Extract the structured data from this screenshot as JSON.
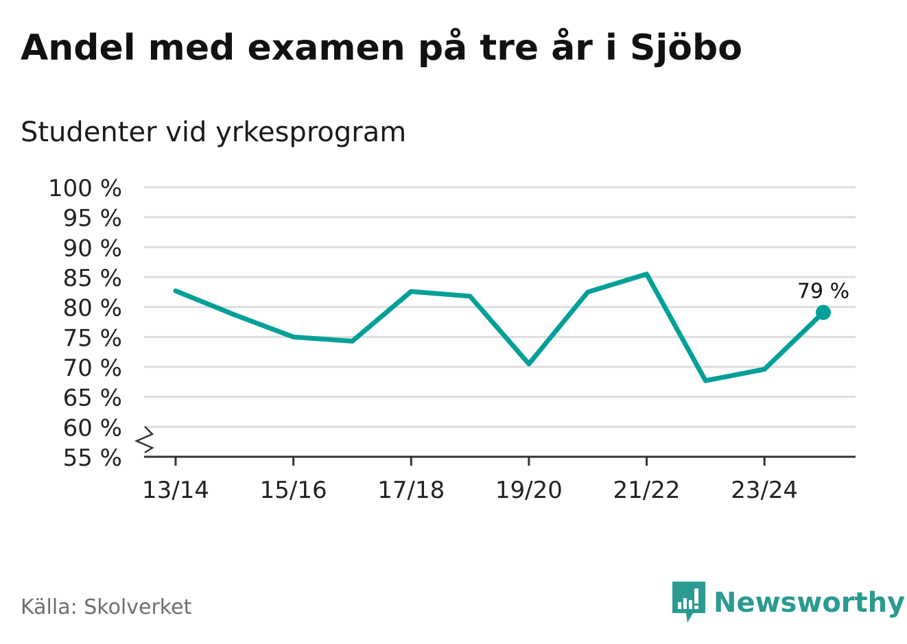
{
  "colors": {
    "line": "#00a098",
    "grid": "#dddddd",
    "axis": "#333333",
    "brand": "#2b9a91"
  },
  "chart_data": {
    "type": "line",
    "title": "Andel med examen på tre år i Sjöbo",
    "subtitle": "Studenter vid yrkesprogram",
    "ylim": [
      55,
      100
    ],
    "y_ticks": [
      55,
      60,
      65,
      70,
      75,
      80,
      85,
      90,
      95,
      100
    ],
    "y_tick_labels": [
      "55 %",
      "60 %",
      "65 %",
      "70 %",
      "75 %",
      "80 %",
      "85 %",
      "90 %",
      "95 %",
      "100 %"
    ],
    "x": [
      "13/14",
      "14/15",
      "15/16",
      "16/17",
      "17/18",
      "18/19",
      "19/20",
      "20/21",
      "21/22",
      "22/23",
      "23/24",
      "24/25"
    ],
    "x_tick_labels": [
      "13/14",
      "15/16",
      "17/18",
      "19/20",
      "21/22",
      "23/24"
    ],
    "values": [
      82.7,
      78.7,
      75.0,
      74.3,
      82.6,
      81.8,
      70.5,
      82.5,
      85.5,
      67.7,
      69.6,
      79.1
    ],
    "last_label": "79 %",
    "grid": true,
    "axis_break": true
  },
  "source": "Källa: Skolverket",
  "brand": {
    "name": "Newsworthy",
    "logo_icon": "newsworthy-logo-icon"
  }
}
